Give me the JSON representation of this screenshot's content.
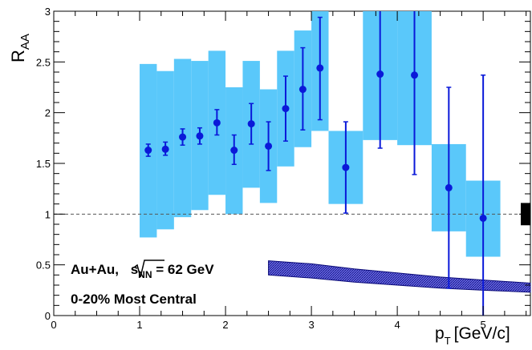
{
  "chart_data": {
    "type": "scatter",
    "title": "",
    "xlabel_main": "p",
    "xlabel_sub": "T",
    "xlabel_units": "[GeV/c]",
    "ylabel_main": "R",
    "ylabel_sub": "AA",
    "xlim": [
      0,
      5.55
    ],
    "ylim": [
      0,
      3
    ],
    "x_ticks": [
      0,
      1,
      2,
      3,
      4,
      5
    ],
    "y_ticks": [
      0,
      0.5,
      1,
      1.5,
      2,
      2.5,
      3
    ],
    "x_tick_labels": [
      "0",
      "1",
      "2",
      "3",
      "4",
      "5"
    ],
    "y_tick_labels": [
      "0",
      "0.5",
      "1",
      "1.5",
      "2",
      "2.5",
      "3"
    ],
    "reference_line": 1,
    "colors": {
      "points": "#0a19d9",
      "sys_band": "#5ac8fa",
      "ncoll_band_fill": "#6a6ae6",
      "ncoll_band_edge": "#0a0a78",
      "reference_line": "#555555"
    },
    "series": [
      {
        "x": [
          1.1,
          1.3,
          1.5,
          1.7,
          1.9,
          2.1,
          2.3,
          2.5,
          2.7,
          2.9,
          3.1,
          3.4,
          3.8,
          4.2,
          4.6,
          5.0
        ],
        "y": [
          1.63,
          1.64,
          1.76,
          1.77,
          1.9,
          1.63,
          1.89,
          1.67,
          2.04,
          2.23,
          2.44,
          1.46,
          2.38,
          2.37,
          1.26,
          0.96
        ],
        "stat_low": [
          1.57,
          1.58,
          1.68,
          1.69,
          1.78,
          1.49,
          1.69,
          1.43,
          1.72,
          1.83,
          1.93,
          1.01,
          1.65,
          1.39,
          0.27,
          0.0
        ],
        "stat_high": [
          1.69,
          1.71,
          1.84,
          1.85,
          2.03,
          1.78,
          2.09,
          1.91,
          2.36,
          2.64,
          2.94,
          1.91,
          3.0,
          3.0,
          2.25,
          2.37
        ],
        "sys_bands": [
          {
            "x0": 1.0,
            "x1": 1.2,
            "low": 0.77,
            "high": 2.48
          },
          {
            "x0": 1.2,
            "x1": 1.4,
            "low": 0.85,
            "high": 2.41
          },
          {
            "x0": 1.4,
            "x1": 1.6,
            "low": 0.97,
            "high": 2.53
          },
          {
            "x0": 1.6,
            "x1": 1.8,
            "low": 1.04,
            "high": 2.51
          },
          {
            "x0": 1.8,
            "x1": 2.0,
            "low": 1.19,
            "high": 2.61
          },
          {
            "x0": 2.0,
            "x1": 2.2,
            "low": 1.0,
            "high": 2.25
          },
          {
            "x0": 2.2,
            "x1": 2.4,
            "low": 1.26,
            "high": 2.51
          },
          {
            "x0": 2.4,
            "x1": 2.6,
            "low": 1.11,
            "high": 2.23
          },
          {
            "x0": 2.6,
            "x1": 2.8,
            "low": 1.47,
            "high": 2.61
          },
          {
            "x0": 2.8,
            "x1": 3.0,
            "low": 1.66,
            "high": 2.81
          },
          {
            "x0": 3.0,
            "x1": 3.2,
            "low": 1.82,
            "high": 3.0
          },
          {
            "x0": 3.2,
            "x1": 3.6,
            "low": 1.1,
            "high": 1.82
          },
          {
            "x0": 3.6,
            "x1": 4.0,
            "low": 1.73,
            "high": 3.0
          },
          {
            "x0": 4.0,
            "x1": 4.4,
            "low": 1.68,
            "high": 3.0
          },
          {
            "x0": 4.4,
            "x1": 4.8,
            "low": 0.83,
            "high": 1.69
          },
          {
            "x0": 4.8,
            "x1": 5.2,
            "low": 0.58,
            "high": 1.33
          }
        ]
      }
    ],
    "ncoll_band": {
      "x": [
        2.5,
        3.0,
        3.5,
        4.0,
        4.5,
        5.0,
        5.55
      ],
      "upper": [
        0.54,
        0.51,
        0.46,
        0.42,
        0.38,
        0.35,
        0.32
      ],
      "lower": [
        0.4,
        0.37,
        0.33,
        0.3,
        0.27,
        0.25,
        0.23
      ]
    },
    "norm_box": {
      "low": 0.89,
      "high": 1.11
    },
    "annotations": {
      "line1_prefix": "Au+Au, ",
      "line1_root": "s",
      "line1_root_sub": "NN",
      "line1_suffix": " = 62 GeV",
      "line2": "0-20% Most Central"
    }
  }
}
